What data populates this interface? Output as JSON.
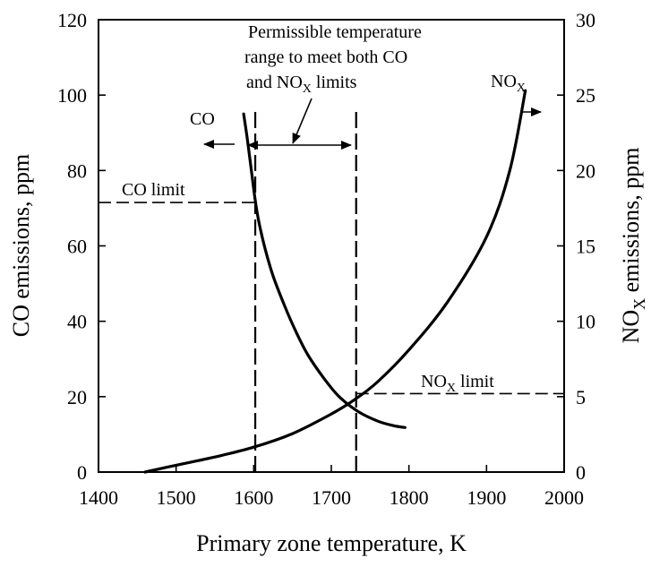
{
  "chart_data": {
    "type": "line",
    "title": "",
    "xlabel": "Primary zone temperature, K",
    "ylabel_left": "CO emissions, ppm",
    "ylabel_right": {
      "main": "NO",
      "sub": "X",
      "rest": " emissions, ppm"
    },
    "xlim": [
      1400,
      2000
    ],
    "ylim_left": [
      0,
      120
    ],
    "ylim_right": [
      0,
      30
    ],
    "x_ticks": [
      1400,
      1500,
      1600,
      1700,
      1800,
      1900,
      2000
    ],
    "y_left_ticks": [
      0,
      20,
      40,
      60,
      80,
      100,
      120
    ],
    "y_right_ticks": [
      0,
      5,
      10,
      15,
      20,
      25,
      30
    ],
    "series": [
      {
        "name": "CO",
        "axis": "left",
        "label": "CO",
        "points": [
          [
            1587,
            95
          ],
          [
            1592,
            88
          ],
          [
            1597,
            80
          ],
          [
            1602,
            72
          ],
          [
            1607,
            66
          ],
          [
            1615,
            59
          ],
          [
            1625,
            52
          ],
          [
            1640,
            44
          ],
          [
            1655,
            37
          ],
          [
            1670,
            31
          ],
          [
            1690,
            25
          ],
          [
            1710,
            20
          ],
          [
            1735,
            16
          ],
          [
            1760,
            13.5
          ],
          [
            1780,
            12.3
          ],
          [
            1795,
            11.8
          ]
        ]
      },
      {
        "name": "NOx",
        "axis": "right",
        "label": {
          "main": "NO",
          "sub": "X"
        },
        "points": [
          [
            1460,
            0
          ],
          [
            1500,
            0.45
          ],
          [
            1550,
            1.0
          ],
          [
            1600,
            1.65
          ],
          [
            1650,
            2.55
          ],
          [
            1700,
            3.85
          ],
          [
            1730,
            4.8
          ],
          [
            1760,
            6.0
          ],
          [
            1800,
            8.1
          ],
          [
            1850,
            11.3
          ],
          [
            1900,
            15.6
          ],
          [
            1930,
            20.0
          ],
          [
            1950,
            25.3
          ]
        ]
      }
    ],
    "reference_lines": {
      "co_limit": {
        "value": 71.5,
        "axis": "left",
        "label": "CO limit"
      },
      "nox_limit": {
        "value": 5.2,
        "axis": "right",
        "label": {
          "main": "NO",
          "sub": "X",
          "rest": " limit"
        }
      },
      "temp_lower": 1602,
      "temp_upper": 1732
    },
    "annotations": {
      "range_text_line1": "Permissible temperature",
      "range_text_line2": "range to meet both CO",
      "range_text_line3": {
        "pre": "and NO",
        "sub": "X",
        "post": " limits"
      }
    }
  }
}
